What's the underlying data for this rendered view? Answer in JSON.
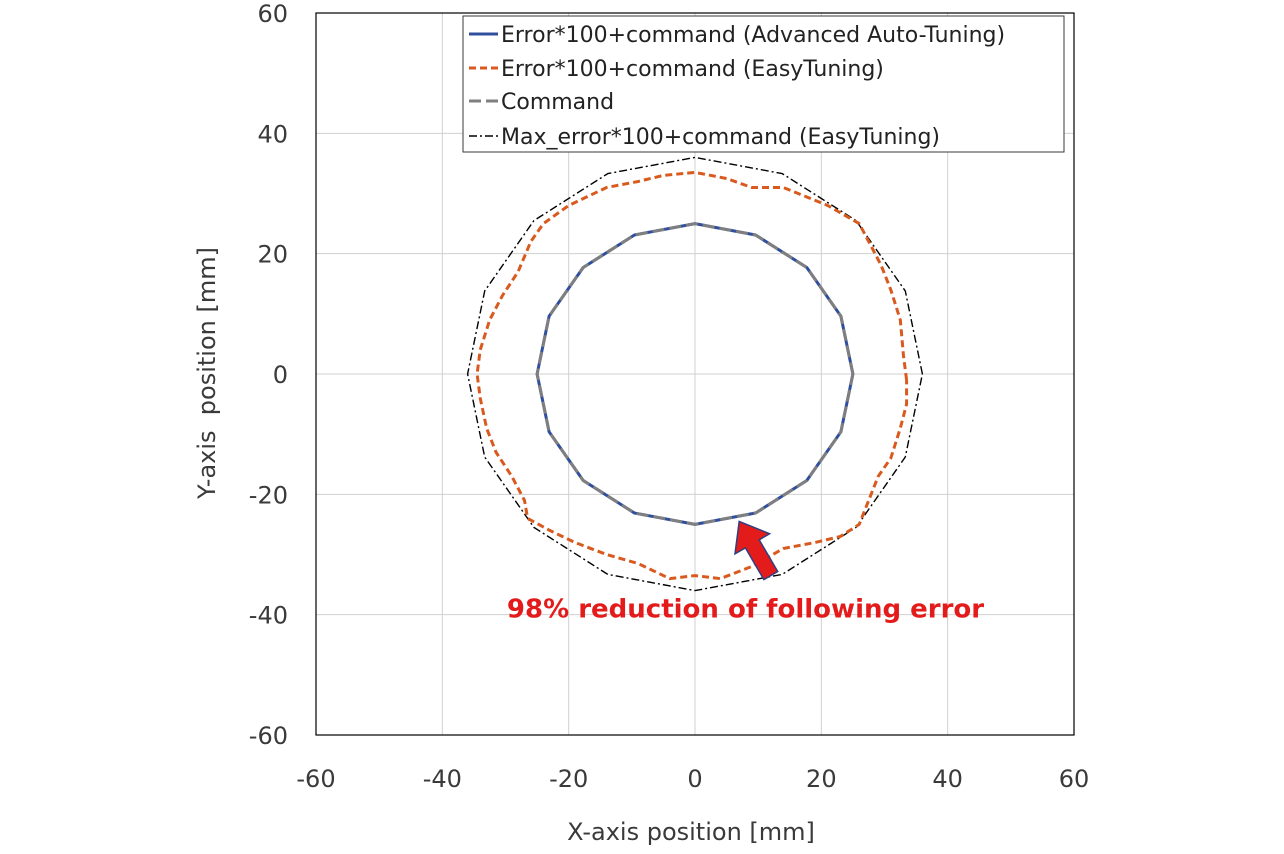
{
  "chart_data": {
    "type": "line",
    "title": "",
    "xlabel": "X-axis position [mm]",
    "ylabel": "Y-axis  position [mm]",
    "xlim": [
      -60,
      60
    ],
    "ylim": [
      -60,
      60
    ],
    "xticks": [
      -60,
      -40,
      -20,
      0,
      20,
      40,
      60
    ],
    "yticks": [
      -60,
      -40,
      -20,
      0,
      20,
      40,
      60
    ],
    "x_tick_labels": [
      "-60",
      "-40",
      "-20",
      "0",
      "20",
      "40",
      "60"
    ],
    "y_tick_labels": [
      "-60",
      "-40",
      "-20",
      "0",
      "20",
      "40",
      "60"
    ],
    "grid": true,
    "legend_position": "top-right",
    "series": [
      {
        "name": "Error*100+command  (Advanced Auto-Tuning)",
        "color": "#2f4f9e",
        "style": "solid",
        "points": [
          [
            25,
            0
          ],
          [
            23.1,
            9.6
          ],
          [
            17.7,
            17.7
          ],
          [
            9.6,
            23.1
          ],
          [
            0,
            25
          ],
          [
            -9.6,
            23.1
          ],
          [
            -17.7,
            17.7
          ],
          [
            -23.1,
            9.6
          ],
          [
            -25,
            0
          ],
          [
            -23.1,
            -9.6
          ],
          [
            -17.7,
            -17.7
          ],
          [
            -9.6,
            -23.1
          ],
          [
            0,
            -25
          ],
          [
            9.6,
            -23.1
          ],
          [
            17.7,
            -17.7
          ],
          [
            23.1,
            -9.6
          ],
          [
            25,
            0
          ]
        ]
      },
      {
        "name": "Error*100+command  (EasyTuning)",
        "color": "#d95a1e",
        "style": "dashed",
        "points": [
          [
            33.5,
            -1
          ],
          [
            33,
            3
          ],
          [
            32.5,
            9
          ],
          [
            31,
            14
          ],
          [
            29.5,
            18
          ],
          [
            28,
            21
          ],
          [
            26,
            25
          ],
          [
            21,
            28
          ],
          [
            14,
            31
          ],
          [
            9,
            31
          ],
          [
            5,
            32.5
          ],
          [
            0,
            33.5
          ],
          [
            -5,
            33
          ],
          [
            -9,
            32
          ],
          [
            -14,
            31
          ],
          [
            -20,
            28
          ],
          [
            -24,
            25
          ],
          [
            -26,
            22
          ],
          [
            -28,
            17
          ],
          [
            -30.5,
            13
          ],
          [
            -32.5,
            9
          ],
          [
            -34,
            4
          ],
          [
            -34.5,
            0
          ],
          [
            -34,
            -4
          ],
          [
            -33,
            -9
          ],
          [
            -31.5,
            -13
          ],
          [
            -29,
            -17
          ],
          [
            -27,
            -21
          ],
          [
            -26.5,
            -24
          ],
          [
            -23,
            -26
          ],
          [
            -19,
            -28
          ],
          [
            -14,
            -30
          ],
          [
            -9,
            -31.5
          ],
          [
            -4,
            -34
          ],
          [
            0,
            -33.5
          ],
          [
            4,
            -34
          ],
          [
            9,
            -32
          ],
          [
            14,
            -29
          ],
          [
            19,
            -28
          ],
          [
            23,
            -27
          ],
          [
            26,
            -25
          ],
          [
            27.5,
            -21
          ],
          [
            29,
            -17
          ],
          [
            31,
            -14
          ],
          [
            32.5,
            -9
          ],
          [
            33.5,
            -5
          ],
          [
            33.5,
            -1
          ]
        ]
      },
      {
        "name": "Command",
        "color": "#7f7f7f",
        "style": "dashed",
        "points": [
          [
            25,
            0
          ],
          [
            23.1,
            9.6
          ],
          [
            17.7,
            17.7
          ],
          [
            9.6,
            23.1
          ],
          [
            0,
            25
          ],
          [
            -9.6,
            23.1
          ],
          [
            -17.7,
            17.7
          ],
          [
            -23.1,
            9.6
          ],
          [
            -25,
            0
          ],
          [
            -23.1,
            -9.6
          ],
          [
            -17.7,
            -17.7
          ],
          [
            -9.6,
            -23.1
          ],
          [
            0,
            -25
          ],
          [
            9.6,
            -23.1
          ],
          [
            17.7,
            -17.7
          ],
          [
            23.1,
            -9.6
          ],
          [
            25,
            0
          ]
        ]
      },
      {
        "name": "Max_error*100+command (EasyTuning)",
        "color": "#000000",
        "style": "dashdot",
        "points": [
          [
            36,
            0
          ],
          [
            33.3,
            13.8
          ],
          [
            25.5,
            25.5
          ],
          [
            13.8,
            33.3
          ],
          [
            0,
            36
          ],
          [
            -13.8,
            33.3
          ],
          [
            -25.5,
            25.5
          ],
          [
            -33.3,
            13.8
          ],
          [
            -36,
            0
          ],
          [
            -33.3,
            -13.8
          ],
          [
            -25.5,
            -25.5
          ],
          [
            -13.8,
            -33.3
          ],
          [
            0,
            -36
          ],
          [
            13.8,
            -33.3
          ],
          [
            25.5,
            -25.5
          ],
          [
            33.3,
            -13.8
          ],
          [
            36,
            0
          ]
        ]
      }
    ],
    "annotations": [
      {
        "text": "98% reduction of following error",
        "color": "#e31b1b",
        "x": 8,
        "y": -40.5
      }
    ],
    "arrow": {
      "from": [
        12,
        -33.5
      ],
      "to": [
        7,
        -24.5
      ],
      "color": "#e31b1b"
    }
  }
}
